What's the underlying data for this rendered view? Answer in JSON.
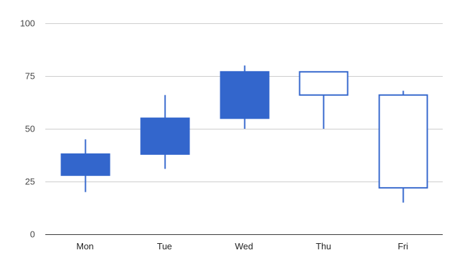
{
  "chart_data": {
    "type": "candlestick",
    "categories": [
      "Mon",
      "Tue",
      "Wed",
      "Thu",
      "Fri"
    ],
    "candles": [
      {
        "label": "Mon",
        "low": 20,
        "open": 28,
        "close": 38,
        "high": 45
      },
      {
        "label": "Tue",
        "low": 31,
        "open": 38,
        "close": 55,
        "high": 66
      },
      {
        "label": "Wed",
        "low": 50,
        "open": 55,
        "close": 77,
        "high": 80
      },
      {
        "label": "Thu",
        "low": 50,
        "open": 77,
        "close": 66,
        "high": 77
      },
      {
        "label": "Fri",
        "low": 15,
        "open": 66,
        "close": 22,
        "high": 68
      }
    ],
    "y_ticks": [
      0,
      25,
      50,
      75,
      100
    ],
    "y_tick_labels": [
      "0",
      "25",
      "50",
      "75",
      "100"
    ],
    "ylim": [
      0,
      100
    ],
    "grid": true,
    "colors": {
      "rising_fill": "#3366cc",
      "falling_fill": "#ffffff",
      "stroke": "#3366cc",
      "grid": "#cccccc",
      "axis": "#333333"
    }
  }
}
